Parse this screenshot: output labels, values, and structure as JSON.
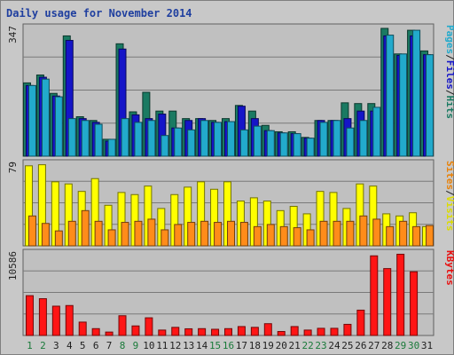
{
  "chart_data": {
    "type": "bar",
    "title": "Daily usage for November 2014",
    "categories": [
      "1",
      "2",
      "3",
      "4",
      "5",
      "6",
      "7",
      "8",
      "9",
      "10",
      "11",
      "12",
      "13",
      "14",
      "15",
      "16",
      "17",
      "18",
      "19",
      "20",
      "21",
      "22",
      "23",
      "24",
      "25",
      "26",
      "27",
      "28",
      "29",
      "30",
      "31"
    ],
    "weekend_days": [
      "1",
      "2",
      "8",
      "9",
      "15",
      "16",
      "22",
      "23",
      "29",
      "30"
    ],
    "panels": [
      {
        "name": "hits-files-pages",
        "ymax_label": "347",
        "ylim": [
          0,
          347
        ],
        "side_labels": [
          "Pages",
          "/",
          "Files",
          "/",
          "Hits"
        ],
        "side_colors": [
          "#22aacc",
          "#1f1f1f",
          "#1515c8",
          "#1f1f1f",
          "#1a7a62"
        ],
        "series": [
          {
            "name": "Hits",
            "color": "#1a7a62",
            "values": [
              195,
              216,
              167,
              320,
              105,
              95,
              45,
              299,
              118,
              170,
              120,
              120,
              100,
              100,
              95,
              100,
              135,
              120,
              82,
              65,
              65,
              50,
              95,
              95,
              142,
              140,
              140,
              340,
              272,
              335,
              280
            ]
          },
          {
            "name": "Files",
            "color": "#1515c8",
            "values": [
              188,
              210,
              160,
              308,
              100,
              90,
              40,
              285,
              110,
              100,
              112,
              75,
              95,
              100,
              90,
              92,
              133,
              100,
              68,
              62,
              60,
              48,
              95,
              95,
              100,
              120,
              120,
              320,
              268,
              320,
              270
            ]
          },
          {
            "name": "Pages",
            "color": "#22aacc",
            "values": [
              188,
              205,
              158,
              100,
              95,
              85,
              45,
              100,
              90,
              95,
              55,
              75,
              70,
              95,
              90,
              92,
              70,
              80,
              68,
              62,
              60,
              48,
              90,
              95,
              75,
              95,
              130,
              322,
              272,
              335,
              270
            ]
          }
        ]
      },
      {
        "name": "visits-sites",
        "ymax_label": "79",
        "ylim": [
          0,
          79
        ],
        "side_labels": [
          "Sites",
          "/",
          "Visits"
        ],
        "side_colors": [
          "#e8820a",
          "#1f1f1f",
          "#dcdc00"
        ],
        "series": [
          {
            "name": "Visits",
            "color": "#ffff00",
            "values": [
              75,
              76,
              60,
              58,
              51,
              63,
              38,
              50,
              48,
              56,
              35,
              48,
              55,
              60,
              53,
              60,
              42,
              45,
              42,
              33,
              37,
              30,
              51,
              50,
              35,
              58,
              56,
              30,
              28,
              31,
              18
            ]
          },
          {
            "name": "Sites",
            "color": "#ff8c1a",
            "values": [
              28,
              21,
              14,
              23,
              33,
              23,
              15,
              22,
              23,
              25,
              15,
              20,
              22,
              23,
              22,
              23,
              22,
              18,
              20,
              18,
              17,
              15,
              23,
              23,
              23,
              28,
              25,
              18,
              23,
              18,
              19
            ]
          }
        ]
      },
      {
        "name": "kbytes",
        "ymax_label": "10586",
        "ylim": [
          0,
          10586
        ],
        "side_labels": [
          "KBytes"
        ],
        "side_colors": [
          "#e81010"
        ],
        "series": [
          {
            "name": "KBytes",
            "color": "#ff1515",
            "values": [
              5000,
              4620,
              3680,
              3760,
              1680,
              860,
              430,
              2480,
              1200,
              2220,
              680,
              1020,
              840,
              860,
              780,
              860,
              1120,
              1020,
              1480,
              500,
              1120,
              680,
              900,
              900,
              1400,
              3180,
              10000,
              8400,
              10200,
              8000,
              0
            ]
          }
        ]
      }
    ]
  }
}
